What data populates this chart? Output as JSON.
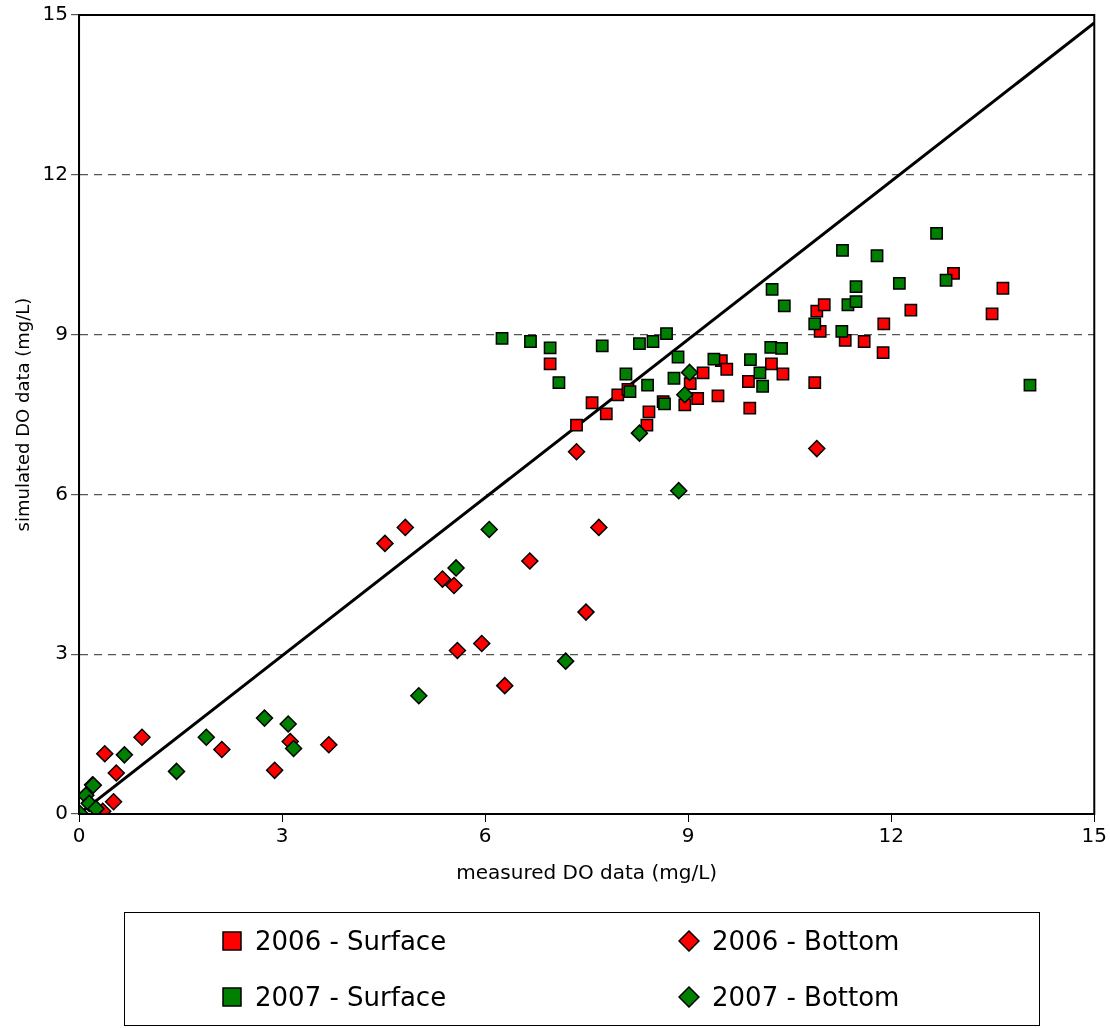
{
  "chart_data": {
    "type": "scatter",
    "xlabel": "measured DO data (mg/L)",
    "ylabel": "simulated DO data (mg/L)",
    "xlim": [
      0,
      15
    ],
    "ylim": [
      0,
      15
    ],
    "xticks": [
      0,
      3,
      6,
      9,
      12,
      15
    ],
    "yticks": [
      0,
      3,
      6,
      9,
      12,
      15
    ],
    "grid": "y",
    "legend": "bottom",
    "series": [
      {
        "name": "2006 - Surface",
        "color": "#ff0000",
        "marker": "square",
        "x": [
          7.35,
          7.58,
          7.79,
          7.96,
          8.11,
          8.39,
          8.42,
          8.63,
          8.95,
          9.03,
          9.14,
          9.22,
          9.44,
          9.49,
          9.57,
          9.89,
          9.91,
          10.23,
          10.4,
          10.87,
          10.9,
          11.01,
          10.95,
          11.32,
          11.6,
          11.89,
          11.88,
          12.29,
          12.92,
          13.49,
          13.65,
          6.96
        ],
        "values": [
          7.3,
          7.72,
          7.51,
          7.87,
          7.97,
          7.3,
          7.55,
          7.74,
          7.68,
          8.08,
          7.8,
          8.28,
          7.85,
          8.51,
          8.35,
          8.12,
          7.62,
          8.45,
          8.26,
          8.1,
          9.44,
          9.56,
          9.06,
          8.89,
          8.87,
          9.2,
          8.66,
          9.46,
          10.15,
          9.39,
          9.87,
          8.45
        ]
      },
      {
        "name": "2006 - Bottom",
        "color": "#ff0000",
        "marker": "diamond",
        "x": [
          0.38,
          0.55,
          0.93,
          0.51,
          2.11,
          2.89,
          3.12,
          3.69,
          4.52,
          4.82,
          5.37,
          5.54,
          5.59,
          5.95,
          6.29,
          6.66,
          7.49,
          7.68,
          7.35,
          10.9,
          0.35
        ],
        "values": [
          1.13,
          0.77,
          1.44,
          0.23,
          1.21,
          0.82,
          1.36,
          1.3,
          5.08,
          5.38,
          4.41,
          4.29,
          3.07,
          3.2,
          2.41,
          4.75,
          3.79,
          5.38,
          6.8,
          6.86,
          0.05
        ]
      },
      {
        "name": "2007 - Surface",
        "color": "#008000",
        "marker": "square",
        "x": [
          6.96,
          7.09,
          7.73,
          8.28,
          8.48,
          8.68,
          8.85,
          8.08,
          8.4,
          8.14,
          8.65,
          8.79,
          9.38,
          9.92,
          10.22,
          10.38,
          10.06,
          10.1,
          10.24,
          10.42,
          10.87,
          11.27,
          11.28,
          11.36,
          11.48,
          11.48,
          11.79,
          12.12,
          12.67,
          12.81,
          14.05,
          6.25,
          6.67
        ],
        "values": [
          8.75,
          8.1,
          8.79,
          8.83,
          8.87,
          9.02,
          8.58,
          8.26,
          8.05,
          7.93,
          7.7,
          8.18,
          8.54,
          8.53,
          8.76,
          8.74,
          8.28,
          8.03,
          9.85,
          9.54,
          9.2,
          9.06,
          10.58,
          9.56,
          9.9,
          9.62,
          10.48,
          9.96,
          10.9,
          10.02,
          8.05,
          8.93,
          8.87
        ]
      },
      {
        "name": "2007 - Bottom",
        "color": "#008000",
        "marker": "diamond",
        "x": [
          0.02,
          0.1,
          0.15,
          0.2,
          0.25,
          0.67,
          0.21,
          1.44,
          1.88,
          2.74,
          3.09,
          3.17,
          5.02,
          5.57,
          6.06,
          7.19,
          8.86,
          8.28,
          8.95,
          9.02
        ],
        "values": [
          0,
          0.35,
          0.2,
          0.55,
          0.1,
          1.11,
          0.54,
          0.8,
          1.44,
          1.8,
          1.69,
          1.23,
          2.22,
          4.62,
          5.34,
          2.87,
          6.07,
          7.15,
          7.87,
          8.29
        ]
      },
      {
        "type": "line",
        "color": "#000000",
        "marker": "none",
        "line_style": "solid",
        "x": [
          0,
          15
        ],
        "values": [
          0,
          14.85
        ]
      }
    ]
  }
}
